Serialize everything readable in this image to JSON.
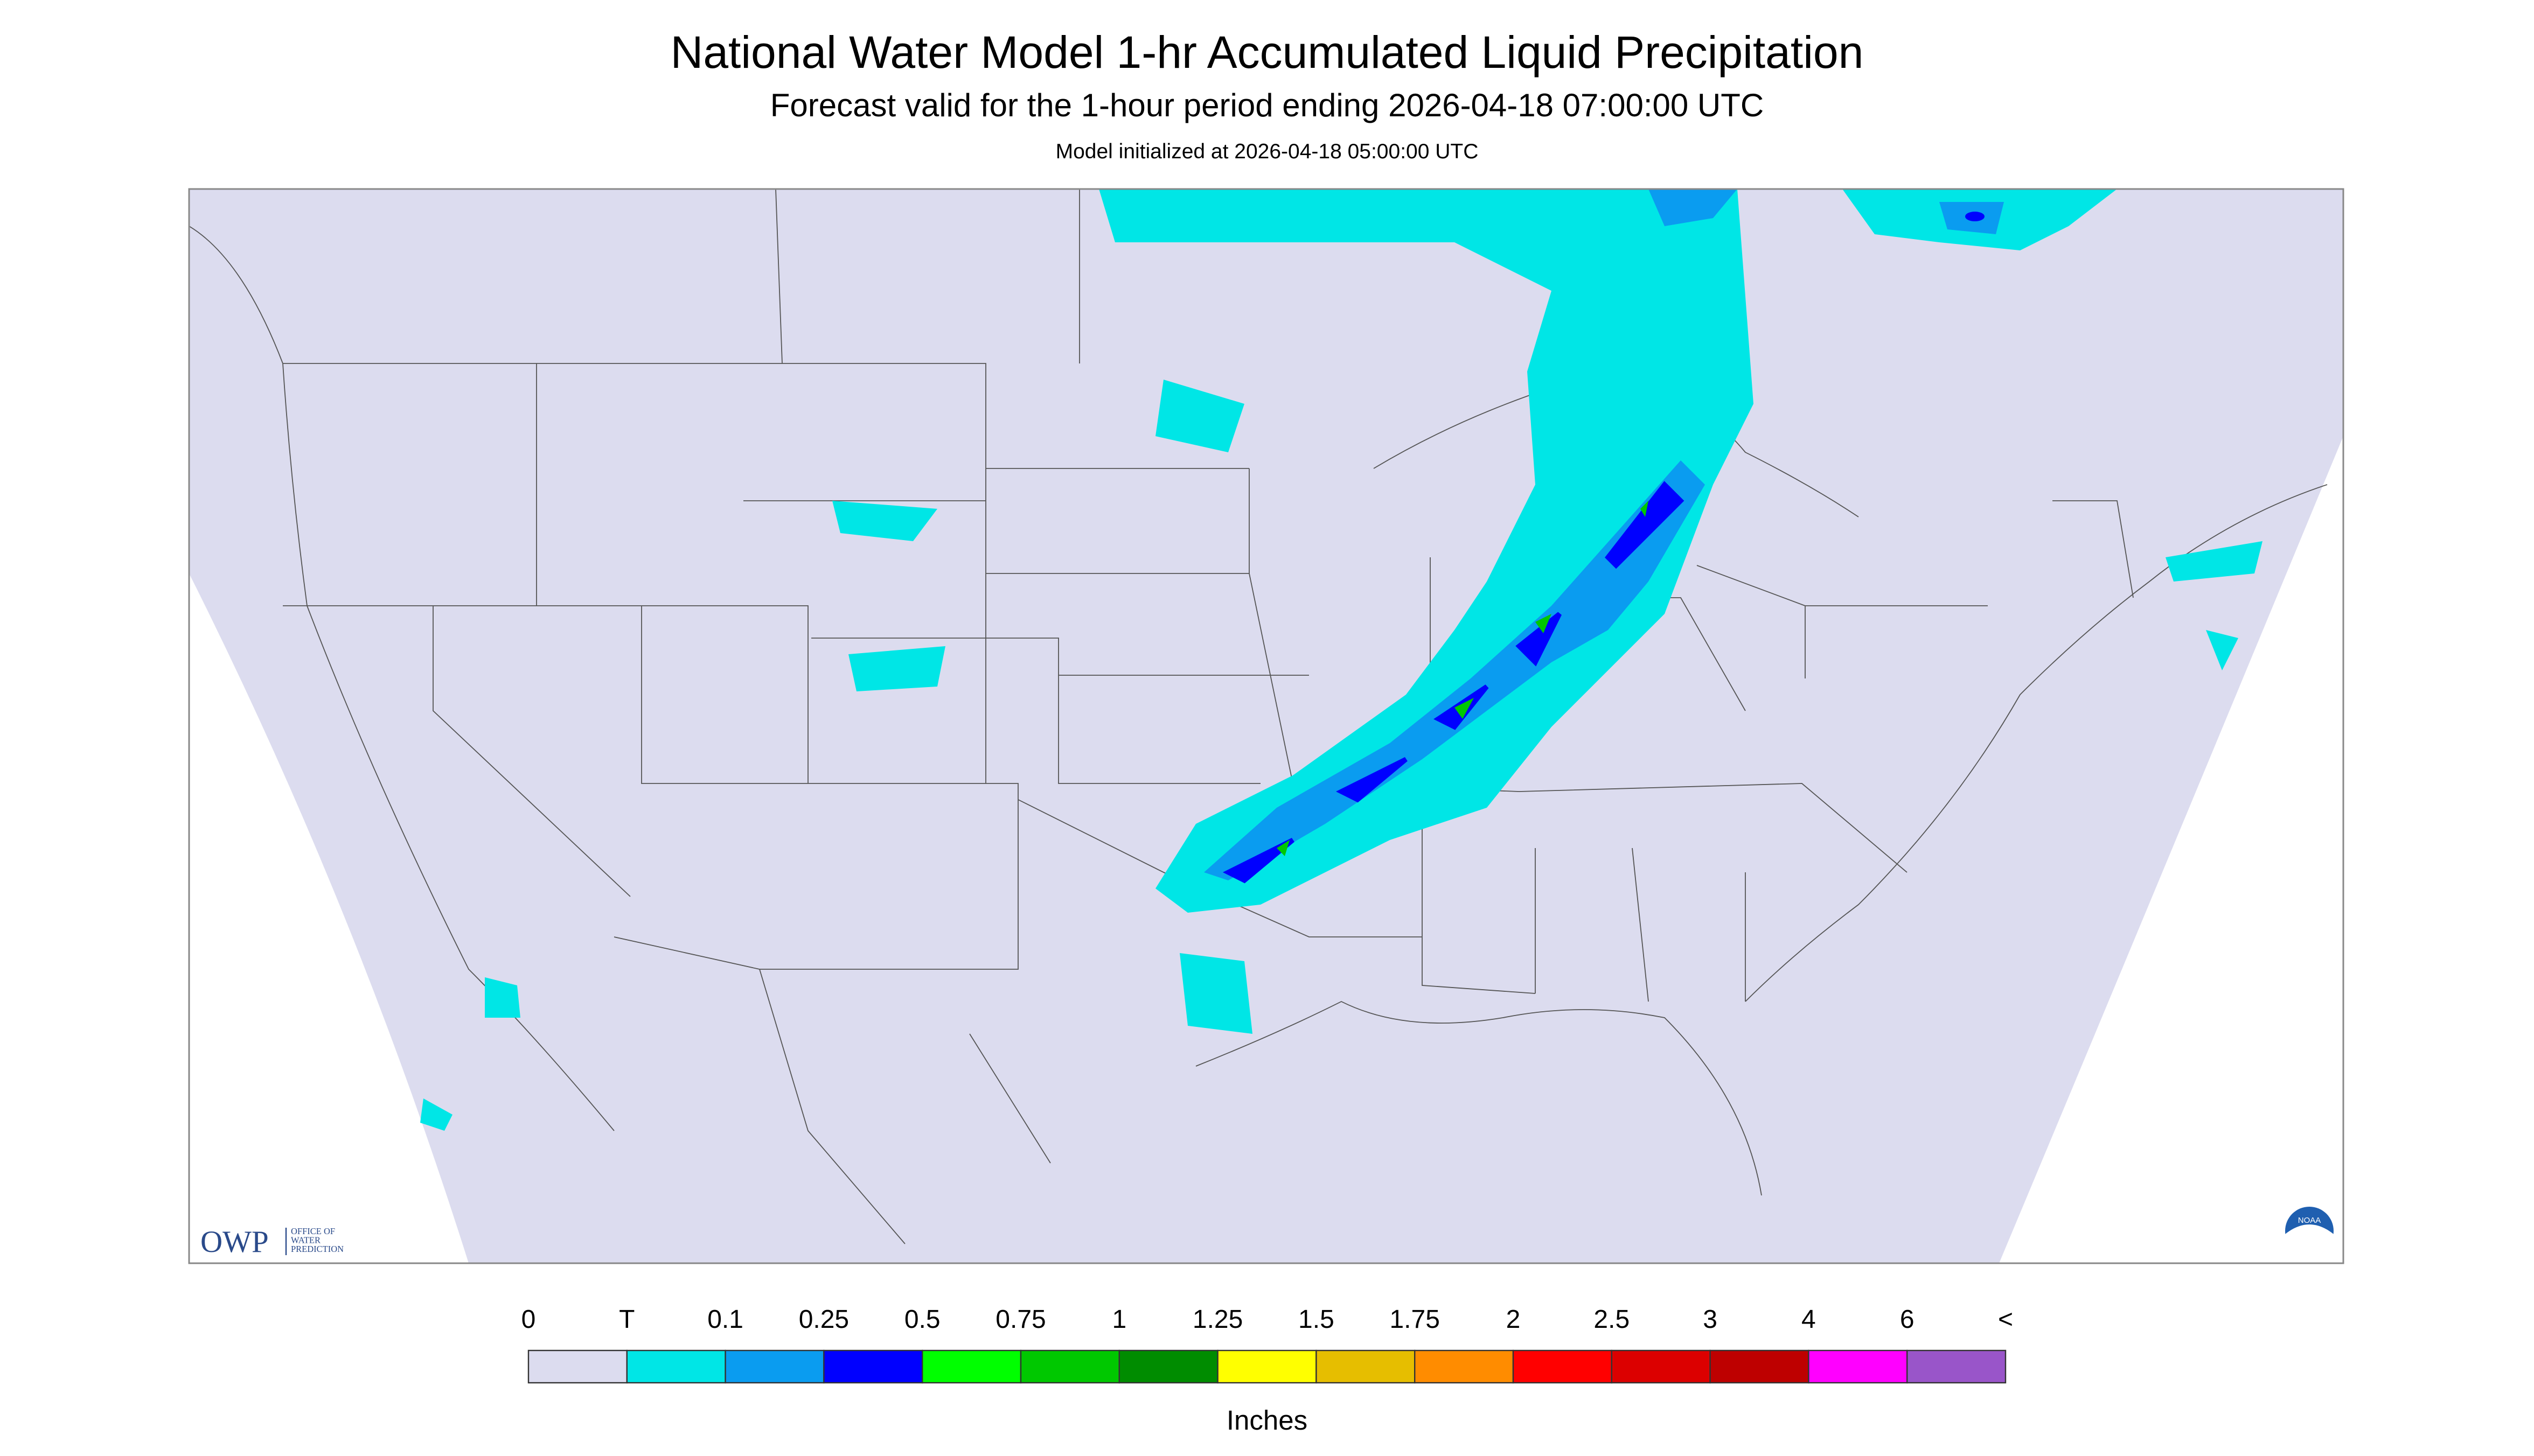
{
  "header": {
    "title": "National Water Model 1-hr Accumulated Liquid Precipitation",
    "subtitle": "Forecast valid for the 1-hour period ending 2026-04-18 07:00:00 UTC",
    "init_line": "Model initialized at 2026-04-18 05:00:00 UTC"
  },
  "legend": {
    "labels": [
      "0",
      "T",
      "0.1",
      "0.25",
      "0.5",
      "0.75",
      "1",
      "1.25",
      "1.5",
      "1.75",
      "2",
      "2.5",
      "3",
      "4",
      "6",
      "<"
    ],
    "colors": [
      "#dcdcef",
      "#00e6e6",
      "#0a9cf0",
      "#0000ff",
      "#00ff00",
      "#00c800",
      "#008c00",
      "#ffff00",
      "#e6be00",
      "#ff8c00",
      "#ff0000",
      "#dc0000",
      "#be0000",
      "#ff00ff",
      "#9955c9"
    ],
    "unit_label": "Inches"
  },
  "logos": {
    "owp": "OWP",
    "owp_lines": [
      "OFFICE OF",
      "WATER",
      "PREDICTION"
    ],
    "noaa": "NOAA"
  }
}
